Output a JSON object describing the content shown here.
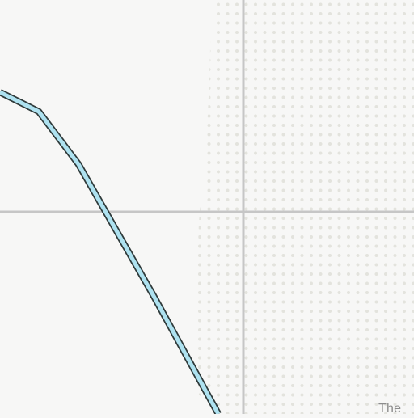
{
  "map": {
    "partial_label": "The",
    "colors": {
      "background": "#f7f7f6",
      "dot_pattern": "#e3e3dd",
      "road": "#c6c6c6",
      "river_fill": "#aee2f0",
      "river_outline": "#2f3a3a",
      "label": "#8c8c8c"
    }
  }
}
